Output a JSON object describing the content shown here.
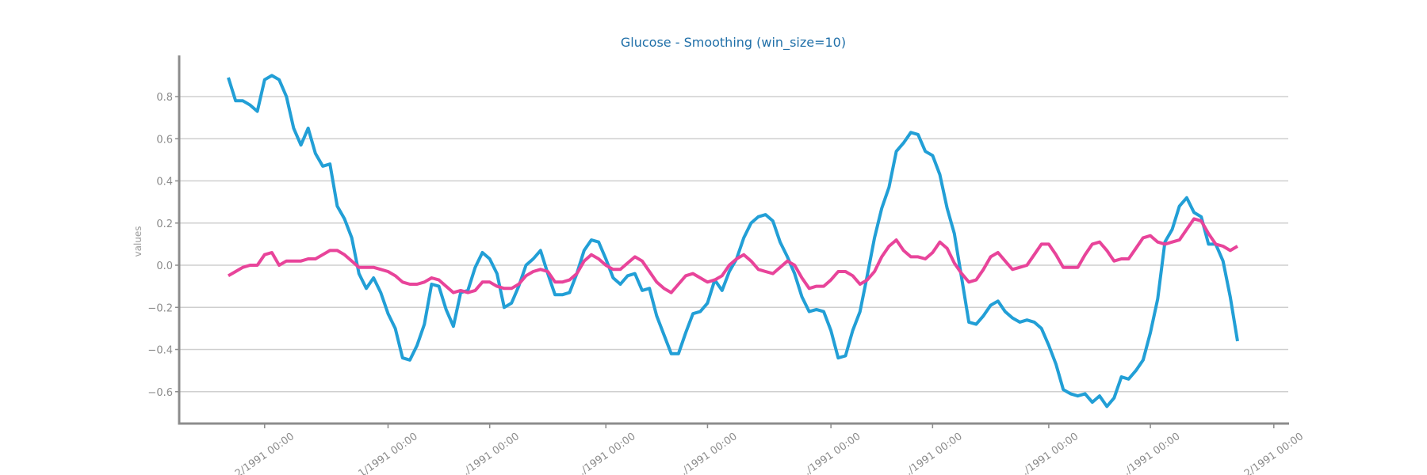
{
  "chart_data": {
    "type": "line",
    "title": "Glucose - Smoothing (win_size=10)",
    "xlabel": "",
    "ylabel": "values",
    "ylim": [
      -0.75,
      0.98
    ],
    "yticks": [
      -0.6,
      -0.4,
      -0.2,
      0.0,
      0.2,
      0.4,
      0.6,
      0.8
    ],
    "ytick_labels": [
      "−0.6",
      "−0.4",
      "−0.2",
      "0.0",
      "0.2",
      "0.4",
      "0.6",
      "0.8"
    ],
    "xticks": [
      {
        "idx": 5,
        "label": "…2/1991 00:00"
      },
      {
        "idx": 22,
        "label": "…1/1991 00:00"
      },
      {
        "idx": 36,
        "label": "…/1991 00:00"
      },
      {
        "idx": 52,
        "label": "…/1991 00:00"
      },
      {
        "idx": 66,
        "label": "…/1991 00:00"
      },
      {
        "idx": 83,
        "label": "…/1991 00:00"
      },
      {
        "idx": 97,
        "label": "…/1991 00:00"
      },
      {
        "idx": 113,
        "label": "…/1991 00:00"
      },
      {
        "idx": 127,
        "label": "…/1991 00:00"
      },
      {
        "idx": 144,
        "label": "…2/1991 00:00"
      }
    ],
    "grid": true,
    "series": [
      {
        "color": "#229fd6",
        "values": [
          0.89,
          0.78,
          0.78,
          0.76,
          0.73,
          0.88,
          0.9,
          0.88,
          0.8,
          0.65,
          0.57,
          0.65,
          0.53,
          0.47,
          0.48,
          0.28,
          0.22,
          0.13,
          -0.04,
          -0.11,
          -0.06,
          -0.13,
          -0.23,
          -0.3,
          -0.44,
          -0.45,
          -0.38,
          -0.28,
          -0.09,
          -0.1,
          -0.21,
          -0.29,
          -0.13,
          -0.12,
          -0.01,
          0.06,
          0.03,
          -0.04,
          -0.2,
          -0.18,
          -0.1,
          0.0,
          0.03,
          0.07,
          -0.04,
          -0.14,
          -0.14,
          -0.13,
          -0.04,
          0.07,
          0.12,
          0.11,
          0.03,
          -0.06,
          -0.09,
          -0.05,
          -0.04,
          -0.12,
          -0.11,
          -0.24,
          -0.33,
          -0.42,
          -0.42,
          -0.32,
          -0.23,
          -0.22,
          -0.18,
          -0.07,
          -0.12,
          -0.03,
          0.03,
          0.13,
          0.2,
          0.23,
          0.24,
          0.21,
          0.11,
          0.04,
          -0.04,
          -0.15,
          -0.22,
          -0.21,
          -0.22,
          -0.31,
          -0.44,
          -0.43,
          -0.31,
          -0.22,
          -0.05,
          0.13,
          0.27,
          0.37,
          0.54,
          0.58,
          0.63,
          0.62,
          0.54,
          0.52,
          0.43,
          0.27,
          0.15,
          -0.06,
          -0.27,
          -0.28,
          -0.24,
          -0.19,
          -0.17,
          -0.22,
          -0.25,
          -0.27,
          -0.26,
          -0.27,
          -0.3,
          -0.38,
          -0.47,
          -0.59,
          -0.61,
          -0.62,
          -0.61,
          -0.65,
          -0.62,
          -0.67,
          -0.63,
          -0.53,
          -0.54,
          -0.5,
          -0.45,
          -0.32,
          -0.16,
          0.11,
          0.17,
          0.28,
          0.32,
          0.25,
          0.23,
          0.1,
          0.1,
          0.02,
          -0.15,
          -0.36
        ]
      },
      {
        "color": "#e8449a",
        "values": [
          -0.05,
          -0.03,
          -0.01,
          0.0,
          0.0,
          0.05,
          0.06,
          0.0,
          0.02,
          0.02,
          0.02,
          0.03,
          0.03,
          0.05,
          0.07,
          0.07,
          0.05,
          0.02,
          -0.01,
          -0.01,
          -0.01,
          -0.02,
          -0.03,
          -0.05,
          -0.08,
          -0.09,
          -0.09,
          -0.08,
          -0.06,
          -0.07,
          -0.1,
          -0.13,
          -0.12,
          -0.13,
          -0.12,
          -0.08,
          -0.08,
          -0.1,
          -0.11,
          -0.11,
          -0.09,
          -0.05,
          -0.03,
          -0.02,
          -0.03,
          -0.08,
          -0.08,
          -0.07,
          -0.04,
          0.02,
          0.05,
          0.03,
          0.0,
          -0.02,
          -0.02,
          0.01,
          0.04,
          0.02,
          -0.03,
          -0.08,
          -0.11,
          -0.13,
          -0.09,
          -0.05,
          -0.04,
          -0.06,
          -0.08,
          -0.07,
          -0.05,
          0.0,
          0.03,
          0.05,
          0.02,
          -0.02,
          -0.03,
          -0.04,
          -0.01,
          0.02,
          0.0,
          -0.06,
          -0.11,
          -0.1,
          -0.1,
          -0.07,
          -0.03,
          -0.03,
          -0.05,
          -0.09,
          -0.07,
          -0.03,
          0.04,
          0.09,
          0.12,
          0.07,
          0.04,
          0.04,
          0.03,
          0.06,
          0.11,
          0.08,
          0.01,
          -0.04,
          -0.08,
          -0.07,
          -0.02,
          0.04,
          0.06,
          0.02,
          -0.02,
          -0.01,
          0.0,
          0.05,
          0.1,
          0.1,
          0.05,
          -0.01,
          -0.01,
          -0.01,
          0.05,
          0.1,
          0.11,
          0.07,
          0.02,
          0.03,
          0.03,
          0.08,
          0.13,
          0.14,
          0.11,
          0.1,
          0.11,
          0.12,
          0.17,
          0.22,
          0.21,
          0.15,
          0.1,
          0.09,
          0.07,
          0.09
        ]
      }
    ]
  }
}
